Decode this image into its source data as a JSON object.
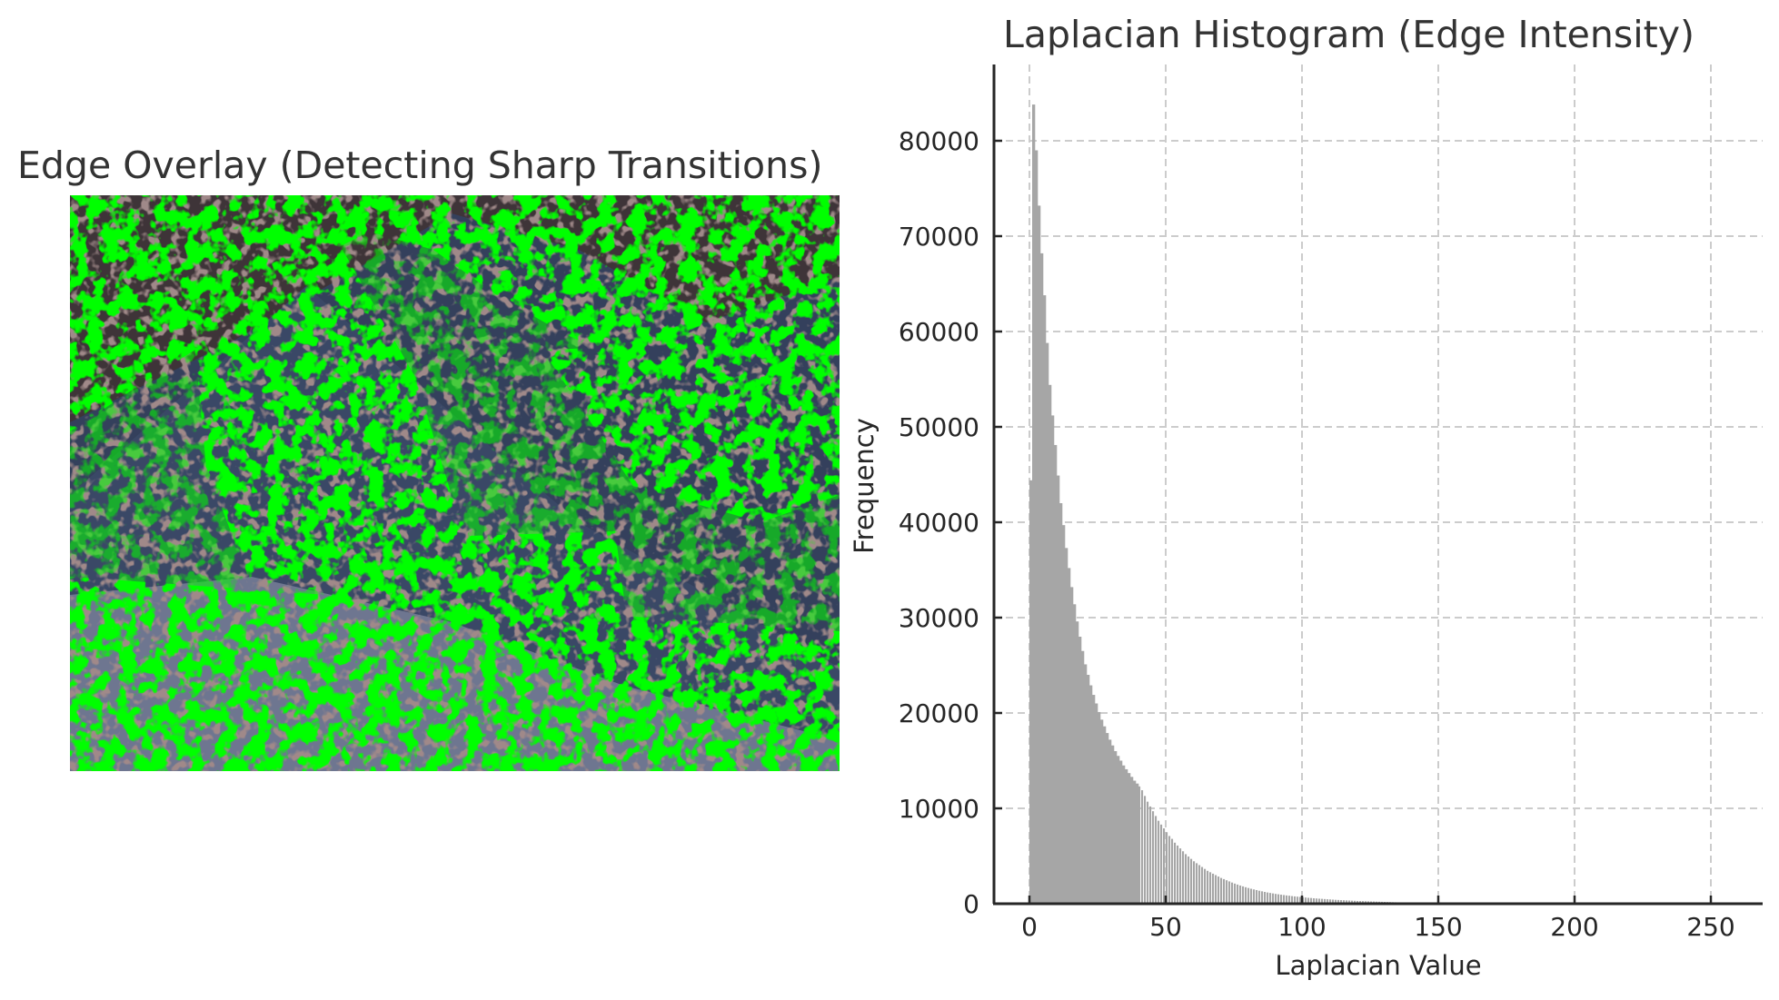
{
  "figure": {
    "left_panel": {
      "title": "Edge Overlay (Detecting Sharp Transitions)",
      "image_description": "Aerial badlands terrain (dark blue-grey slopes, reddish-brown rock patches) with dense bright green edge overlay",
      "colors": {
        "edge": "#00ff00",
        "slope": "#34405c",
        "rock": "#5a4040",
        "light": "#8f96a8"
      }
    },
    "right_panel": {
      "title": "Laplacian Histogram (Edge Intensity)"
    }
  },
  "chart_data": {
    "type": "bar",
    "title": "Laplacian Histogram (Edge Intensity)",
    "xlabel": "Laplacian Value",
    "ylabel": "Frequency",
    "xlim": [
      -13,
      270
    ],
    "ylim": [
      0,
      88000
    ],
    "xticks": [
      0,
      50,
      100,
      150,
      200,
      250
    ],
    "yticks": [
      0,
      10000,
      20000,
      30000,
      40000,
      50000,
      60000,
      70000,
      80000
    ],
    "grid": true,
    "bar_color": "#a6a6a6",
    "bin_width": 1,
    "bins_start": 0,
    "values": [
      44400,
      83800,
      79000,
      73200,
      68200,
      63800,
      58800,
      54400,
      51200,
      48100,
      44900,
      42000,
      39700,
      37300,
      35200,
      33200,
      31400,
      29600,
      28000,
      26500,
      25100,
      24000,
      22900,
      21900,
      21000,
      20100,
      19300,
      18600,
      17900,
      17200,
      16600,
      16000,
      15500,
      15000,
      14500,
      14100,
      13700,
      13300,
      12900,
      12600,
      12300,
      11900,
      11300,
      10700,
      10200,
      9700,
      9200,
      8700,
      8300,
      7900,
      7500,
      7100,
      6800,
      6400,
      6100,
      5800,
      5500,
      5200,
      4950,
      4700,
      4450,
      4250,
      4050,
      3850,
      3650,
      3450,
      3300,
      3150,
      3000,
      2850,
      2700,
      2580,
      2460,
      2340,
      2220,
      2110,
      2010,
      1910,
      1820,
      1730,
      1650,
      1570,
      1500,
      1430,
      1360,
      1300,
      1240,
      1180,
      1130,
      1080,
      1030,
      990,
      950,
      910,
      870,
      840,
      800,
      770,
      740,
      710,
      680,
      650,
      620,
      600,
      570,
      550,
      530,
      510,
      490,
      470,
      450,
      430,
      410,
      395,
      380,
      365,
      350,
      335,
      320,
      305,
      290,
      280,
      270,
      260,
      250,
      240,
      230,
      220,
      210,
      200,
      190,
      180,
      170,
      160,
      150,
      140,
      130,
      120,
      110,
      100,
      90,
      80,
      70,
      60,
      50,
      40,
      30,
      20,
      10,
      5
    ]
  }
}
